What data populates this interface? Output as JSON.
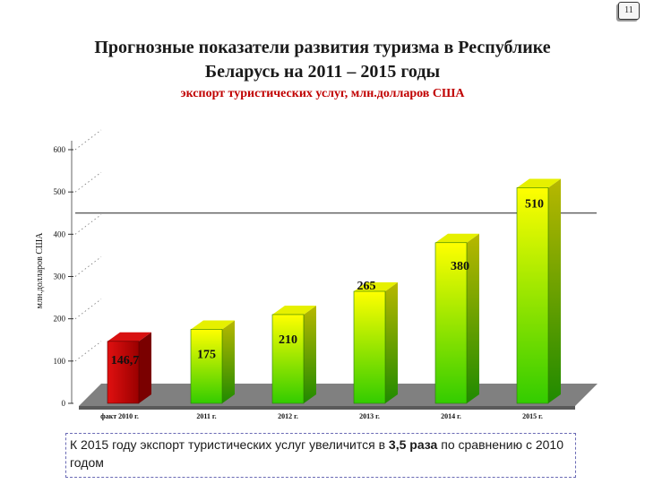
{
  "page_number": "11",
  "title_line1": "Прогнозные показатели развития туризма в Республике",
  "title_line2": "Беларусь на 2011 – 2015 годы",
  "subtitle": "экспорт туристических услуг, млн.долларов США",
  "note": {
    "before": "К 2015 году экспорт туристических услуг увеличится в ",
    "highlight": "3,5 раза",
    "after": " по сравнению с 2010 годом"
  },
  "chart_data": {
    "type": "bar",
    "title": "экспорт туристических услуг, млн.долларов США",
    "ylabel": "млн.долларов США",
    "xlabel": "",
    "categories": [
      "факт 2010 г.",
      "2011 г.",
      "2012 г.",
      "2013 г.",
      "2014 г.",
      "2015 г."
    ],
    "values": [
      146.7,
      175,
      210,
      265,
      380,
      510
    ],
    "value_labels": [
      "146,7",
      "175",
      "210",
      "265",
      "380",
      "510"
    ],
    "ylim": [
      0,
      600
    ],
    "yticks": [
      0,
      100,
      200,
      300,
      400,
      500,
      600
    ],
    "reference_line": 450,
    "colors": {
      "first_bar": "#c00000",
      "bar_top": "#ffff00",
      "bar_bottom": "#33cc00",
      "floor": "#808080"
    },
    "grid": false,
    "legend": "none"
  }
}
